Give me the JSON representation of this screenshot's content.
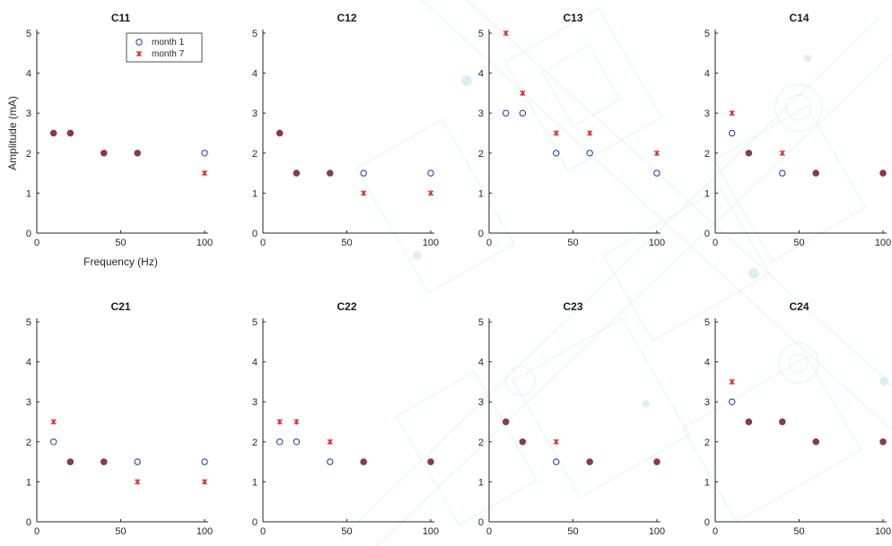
{
  "chart_data": [
    {
      "type": "scatter",
      "title": "C11",
      "xlabel": "Frequency (Hz)",
      "ylabel": "Amplitude (mA)",
      "xlim": [
        0,
        100
      ],
      "ylim": [
        0,
        5
      ],
      "xticks": [
        "0",
        "50",
        "100"
      ],
      "yticks": [
        "0",
        "1",
        "2",
        "3",
        "4",
        "5"
      ],
      "legend": {
        "placement": "top-right",
        "entries": [
          "month 1",
          "month 7"
        ]
      },
      "series": [
        {
          "name": "month 1",
          "marker": "circle",
          "x": [
            10,
            20,
            40,
            60,
            100
          ],
          "y": [
            2.5,
            2.5,
            2.0,
            2.0,
            2.0
          ]
        },
        {
          "name": "month 7",
          "marker": "star",
          "x": [
            10,
            20,
            40,
            60,
            100
          ],
          "y": [
            2.5,
            2.5,
            2.0,
            2.0,
            1.5
          ]
        }
      ]
    },
    {
      "type": "scatter",
      "title": "C12",
      "xlabel": "",
      "ylabel": "",
      "xlim": [
        0,
        100
      ],
      "ylim": [
        0,
        5
      ],
      "xticks": [
        "0",
        "50",
        "100"
      ],
      "yticks": [
        "0",
        "1",
        "2",
        "3",
        "4",
        "5"
      ],
      "series": [
        {
          "name": "month 1",
          "marker": "circle",
          "x": [
            10,
            20,
            40,
            60,
            100
          ],
          "y": [
            2.5,
            1.5,
            1.5,
            1.5,
            1.5
          ]
        },
        {
          "name": "month 7",
          "marker": "star",
          "x": [
            10,
            20,
            40,
            60,
            100
          ],
          "y": [
            2.5,
            1.5,
            1.5,
            1.0,
            1.0
          ]
        }
      ]
    },
    {
      "type": "scatter",
      "title": "C13",
      "xlabel": "",
      "ylabel": "",
      "xlim": [
        0,
        100
      ],
      "ylim": [
        0,
        5
      ],
      "xticks": [
        "0",
        "50",
        "100"
      ],
      "yticks": [
        "0",
        "1",
        "2",
        "3",
        "4",
        "5"
      ],
      "series": [
        {
          "name": "month 1",
          "marker": "circle",
          "x": [
            10,
            20,
            40,
            60,
            100
          ],
          "y": [
            3.0,
            3.0,
            2.0,
            2.0,
            1.5
          ]
        },
        {
          "name": "month 7",
          "marker": "star",
          "x": [
            10,
            20,
            40,
            60,
            100
          ],
          "y": [
            5.0,
            3.5,
            2.5,
            2.5,
            2.0
          ]
        }
      ]
    },
    {
      "type": "scatter",
      "title": "C14",
      "xlabel": "",
      "ylabel": "",
      "xlim": [
        0,
        100
      ],
      "ylim": [
        0,
        5
      ],
      "xticks": [
        "0",
        "50",
        "100"
      ],
      "yticks": [
        "0",
        "1",
        "2",
        "3",
        "4",
        "5"
      ],
      "series": [
        {
          "name": "month 1",
          "marker": "circle",
          "x": [
            10,
            20,
            40,
            60,
            100
          ],
          "y": [
            2.5,
            2.0,
            1.5,
            1.5,
            1.5
          ]
        },
        {
          "name": "month 7",
          "marker": "star",
          "x": [
            10,
            20,
            40,
            60,
            100
          ],
          "y": [
            3.0,
            2.0,
            2.0,
            1.5,
            1.5
          ]
        }
      ]
    },
    {
      "type": "scatter",
      "title": "C21",
      "xlabel": "",
      "ylabel": "",
      "xlim": [
        0,
        100
      ],
      "ylim": [
        0,
        5
      ],
      "xticks": [
        "0",
        "50",
        "100"
      ],
      "yticks": [
        "0",
        "1",
        "2",
        "3",
        "4",
        "5"
      ],
      "series": [
        {
          "name": "month 1",
          "marker": "circle",
          "x": [
            10,
            20,
            40,
            60,
            100
          ],
          "y": [
            2.0,
            1.5,
            1.5,
            1.5,
            1.5
          ]
        },
        {
          "name": "month 7",
          "marker": "star",
          "x": [
            10,
            20,
            40,
            60,
            100
          ],
          "y": [
            2.5,
            1.5,
            1.5,
            1.0,
            1.0
          ]
        }
      ]
    },
    {
      "type": "scatter",
      "title": "C22",
      "xlabel": "",
      "ylabel": "",
      "xlim": [
        0,
        100
      ],
      "ylim": [
        0,
        5
      ],
      "xticks": [
        "0",
        "50",
        "100"
      ],
      "yticks": [
        "0",
        "1",
        "2",
        "3",
        "4",
        "5"
      ],
      "series": [
        {
          "name": "month 1",
          "marker": "circle",
          "x": [
            10,
            20,
            40,
            60,
            100
          ],
          "y": [
            2.0,
            2.0,
            1.5,
            1.5,
            1.5
          ]
        },
        {
          "name": "month 7",
          "marker": "star",
          "x": [
            10,
            20,
            40,
            60,
            100
          ],
          "y": [
            2.5,
            2.5,
            2.0,
            1.5,
            1.5
          ]
        }
      ]
    },
    {
      "type": "scatter",
      "title": "C23",
      "xlabel": "",
      "ylabel": "",
      "xlim": [
        0,
        100
      ],
      "ylim": [
        0,
        5
      ],
      "xticks": [
        "0",
        "50",
        "100"
      ],
      "yticks": [
        "0",
        "1",
        "2",
        "3",
        "4",
        "5"
      ],
      "series": [
        {
          "name": "month 1",
          "marker": "circle",
          "x": [
            10,
            20,
            40,
            60,
            100
          ],
          "y": [
            2.5,
            2.0,
            1.5,
            1.5,
            1.5
          ]
        },
        {
          "name": "month 7",
          "marker": "star",
          "x": [
            10,
            20,
            40,
            60,
            100
          ],
          "y": [
            2.5,
            2.0,
            2.0,
            1.5,
            1.5
          ]
        }
      ]
    },
    {
      "type": "scatter",
      "title": "C24",
      "xlabel": "",
      "ylabel": "",
      "xlim": [
        0,
        100
      ],
      "ylim": [
        0,
        5
      ],
      "xticks": [
        "0",
        "50",
        "100"
      ],
      "yticks": [
        "0",
        "1",
        "2",
        "3",
        "4",
        "5"
      ],
      "series": [
        {
          "name": "month 1",
          "marker": "circle",
          "x": [
            10,
            20,
            40,
            60,
            100
          ],
          "y": [
            3.0,
            2.5,
            2.5,
            2.0,
            2.0
          ]
        },
        {
          "name": "month 7",
          "marker": "star",
          "x": [
            10,
            20,
            40,
            60,
            100
          ],
          "y": [
            3.5,
            2.5,
            2.5,
            2.0,
            2.0
          ]
        }
      ]
    }
  ],
  "colors": {
    "month1": "#1f3a93",
    "month7": "#d62728",
    "overlap": "#8b3a4a",
    "axis": "#262626",
    "watermark": "#d6ecee"
  }
}
